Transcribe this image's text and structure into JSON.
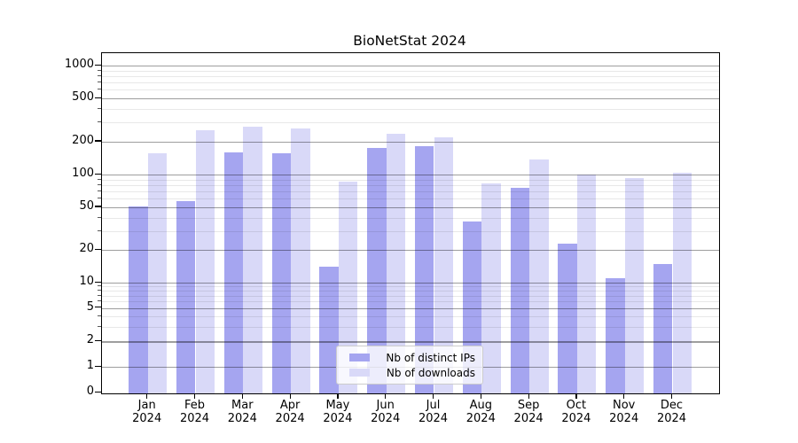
{
  "title": "BioNetStat 2024",
  "chart_data": {
    "type": "bar",
    "title": "BioNetStat 2024",
    "categories": [
      {
        "month": "Jan",
        "year": "2024"
      },
      {
        "month": "Feb",
        "year": "2024"
      },
      {
        "month": "Mar",
        "year": "2024"
      },
      {
        "month": "Apr",
        "year": "2024"
      },
      {
        "month": "May",
        "year": "2024"
      },
      {
        "month": "Jun",
        "year": "2024"
      },
      {
        "month": "Jul",
        "year": "2024"
      },
      {
        "month": "Aug",
        "year": "2024"
      },
      {
        "month": "Sep",
        "year": "2024"
      },
      {
        "month": "Oct",
        "year": "2024"
      },
      {
        "month": "Nov",
        "year": "2024"
      },
      {
        "month": "Dec",
        "year": "2024"
      }
    ],
    "series": [
      {
        "name": "Nb of distinct IPs",
        "color": "#a5a5f0",
        "values": [
          51,
          57,
          160,
          156,
          14,
          176,
          181,
          37,
          76,
          23,
          11,
          15
        ]
      },
      {
        "name": "Nb of downloads",
        "color": "#d9d9f8",
        "values": [
          157,
          255,
          275,
          265,
          86,
          235,
          220,
          83,
          137,
          100,
          93,
          103
        ]
      }
    ],
    "y_axis": {
      "scale": "symlog",
      "major_ticks": [
        0,
        1,
        2,
        5,
        10,
        20,
        50,
        100,
        200,
        500,
        1000
      ],
      "minor_gridlines": [
        3,
        4,
        6,
        7,
        8,
        9,
        30,
        40,
        60,
        70,
        80,
        90,
        300,
        400,
        600,
        700,
        800,
        900
      ],
      "ylim": [
        0,
        1300
      ]
    },
    "xlabel": "",
    "ylabel": "",
    "grid": "horizontal major and minor, drawn over bars",
    "legend_position": "lower center"
  },
  "colors": {
    "bar_distinct_ips": "#a5a5f0",
    "bar_downloads": "#d9d9f8",
    "grid_major_apparent": "#9e9e9e",
    "grid_minor_apparent": "#ebebeb",
    "spine": "#000000",
    "text": "#000000",
    "legend_border": "#cccccc"
  }
}
